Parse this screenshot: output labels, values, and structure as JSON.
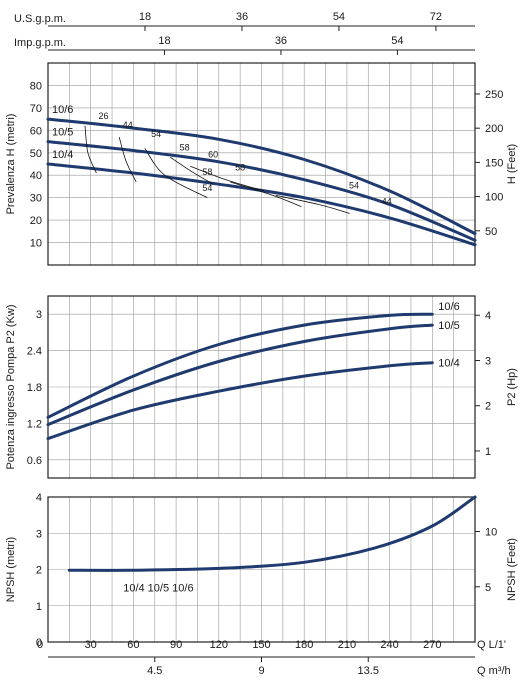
{
  "figure": {
    "top_axes": [
      {
        "label": "U.S.g.p.m.",
        "ticks": [
          18,
          36,
          54,
          72
        ]
      },
      {
        "label": "Imp.g.p.m.",
        "ticks": [
          18,
          36,
          54
        ]
      }
    ],
    "bottom_axes": [
      {
        "label": "Q  L/1'",
        "ticks": [
          0,
          30,
          60,
          90,
          120,
          150,
          180,
          210,
          240,
          270
        ]
      },
      {
        "label": "Q  m³/h",
        "ticks": [
          4.5,
          9,
          13.5
        ]
      }
    ],
    "colors": {
      "curve": "#1f3a6e",
      "grid": "#9a9a9a",
      "frame": "#222222"
    }
  },
  "chart_data": [
    {
      "type": "line",
      "name": "head",
      "ylabel": "Prevalenza H (metri)",
      "ylabel_right": "H (Feet)",
      "xlim": [
        0,
        300
      ],
      "ylim": [
        0,
        90
      ],
      "yticks": [
        10,
        20,
        30,
        40,
        50,
        60,
        70,
        80
      ],
      "yticks_right": [
        50,
        100,
        150,
        200,
        250
      ],
      "grid": true,
      "series": [
        {
          "name": "10/6",
          "points": [
            [
              0,
              65
            ],
            [
              60,
              61
            ],
            [
              120,
              56
            ],
            [
              180,
              47
            ],
            [
              240,
              33
            ],
            [
              300,
              14
            ]
          ]
        },
        {
          "name": "10/5",
          "points": [
            [
              0,
              55
            ],
            [
              60,
              51
            ],
            [
              120,
              46
            ],
            [
              180,
              38
            ],
            [
              240,
              27
            ],
            [
              300,
              11
            ]
          ]
        },
        {
          "name": "10/4",
          "points": [
            [
              0,
              45
            ],
            [
              60,
              41
            ],
            [
              120,
              36
            ],
            [
              180,
              30
            ],
            [
              240,
              21
            ],
            [
              300,
              9
            ]
          ]
        }
      ],
      "efficiency_labels": [
        "26",
        "44",
        "54",
        "58",
        "60",
        "58",
        "58",
        "54",
        "54",
        "44"
      ]
    },
    {
      "type": "line",
      "name": "power",
      "ylabel": "Potenza ingresso Pompa P2 (Kw)",
      "ylabel_right": "P2 (Hp)",
      "xlim": [
        0,
        300
      ],
      "ylim": [
        0.3,
        3.3
      ],
      "yticks": [
        0.6,
        1.2,
        1.8,
        2.4,
        3
      ],
      "yticks_right": [
        1,
        2,
        3,
        4
      ],
      "grid": true,
      "series": [
        {
          "name": "10/6",
          "points": [
            [
              0,
              1.3
            ],
            [
              60,
              1.98
            ],
            [
              120,
              2.5
            ],
            [
              180,
              2.82
            ],
            [
              240,
              2.98
            ],
            [
              270,
              3.0
            ]
          ]
        },
        {
          "name": "10/5",
          "points": [
            [
              0,
              1.18
            ],
            [
              60,
              1.75
            ],
            [
              120,
              2.22
            ],
            [
              180,
              2.55
            ],
            [
              240,
              2.76
            ],
            [
              270,
              2.82
            ]
          ]
        },
        {
          "name": "10/4",
          "points": [
            [
              0,
              0.95
            ],
            [
              60,
              1.42
            ],
            [
              120,
              1.73
            ],
            [
              180,
              1.98
            ],
            [
              240,
              2.15
            ],
            [
              270,
              2.2
            ]
          ]
        }
      ]
    },
    {
      "type": "line",
      "name": "npsh",
      "ylabel": "NPSH (metri)",
      "ylabel_right": "NPSH (Feet)",
      "xlim": [
        0,
        300
      ],
      "ylim": [
        0,
        4
      ],
      "yticks": [
        0,
        1,
        2,
        3,
        4
      ],
      "yticks_right": [
        5,
        10
      ],
      "grid": true,
      "series": [
        {
          "name": "10/4 10/5 10/6",
          "points": [
            [
              15,
              1.98
            ],
            [
              60,
              1.98
            ],
            [
              120,
              2.03
            ],
            [
              180,
              2.2
            ],
            [
              230,
              2.6
            ],
            [
              270,
              3.2
            ],
            [
              300,
              4.0
            ]
          ]
        }
      ],
      "annotation": "10/4  10/5  10/6"
    }
  ]
}
